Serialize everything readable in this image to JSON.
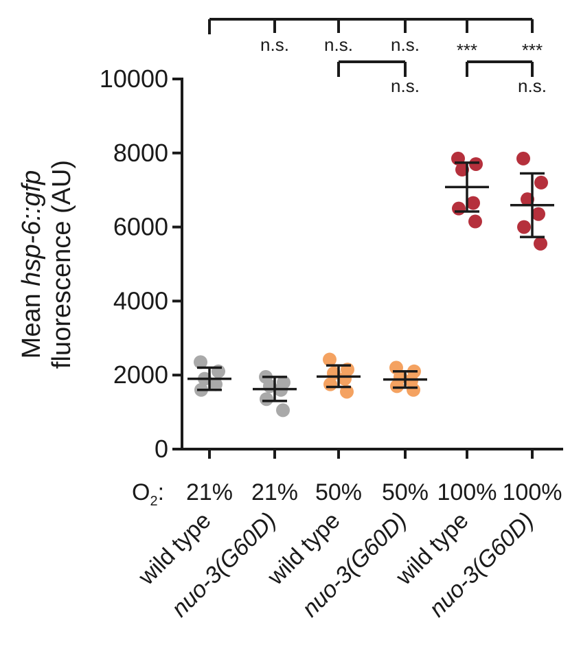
{
  "chart_data": {
    "type": "scatter",
    "ylabel_prefix": "Mean ",
    "ylabel_italic": "hsp-6::gfp",
    "ylabel_line2": "fluorescence (AU)",
    "ylim": [
      0,
      10000
    ],
    "yticks": [
      "0",
      "2000",
      "4000",
      "6000",
      "8000",
      "10000"
    ],
    "o2_label": "O",
    "o2_sub": "2",
    "o2_colon": ":",
    "groups": [
      {
        "o2": "21%",
        "genotype": "wild type",
        "italic": false,
        "color": "#a9a9a9",
        "points": [
          2350,
          2100,
          1900,
          1750,
          1600
        ],
        "mean": 1900,
        "sd_low": 1600,
        "sd_high": 2200
      },
      {
        "o2": "21%",
        "genotype": "nuo-3(G60D)",
        "italic": true,
        "color": "#a9a9a9",
        "points": [
          1950,
          1800,
          1700,
          1600,
          1350,
          1050
        ],
        "mean": 1620,
        "sd_low": 1300,
        "sd_high": 1950
      },
      {
        "o2": "50%",
        "genotype": "wild type",
        "italic": false,
        "color": "#f4a261",
        "points": [
          2420,
          2150,
          2050,
          1900,
          1750,
          1550
        ],
        "mean": 1960,
        "sd_low": 1680,
        "sd_high": 2260
      },
      {
        "o2": "50%",
        "genotype": "nuo-3(G60D)",
        "italic": true,
        "color": "#f4a261",
        "points": [
          2200,
          2100,
          1950,
          1850,
          1700,
          1600
        ],
        "mean": 1880,
        "sd_low": 1660,
        "sd_high": 2100
      },
      {
        "o2": "100%",
        "genotype": "wild type",
        "italic": false,
        "color": "#b5303c",
        "points": [
          7850,
          7700,
          7550,
          6650,
          6500,
          6150
        ],
        "mean": 7080,
        "sd_low": 6420,
        "sd_high": 7740
      },
      {
        "o2": "100%",
        "genotype": "nuo-3(G60D)",
        "italic": true,
        "color": "#b5303c",
        "points": [
          7850,
          7200,
          6750,
          6350,
          6000,
          5550
        ],
        "mean": 6590,
        "sd_low": 5730,
        "sd_high": 7450
      }
    ],
    "significance": {
      "top_bracket_from": 0,
      "top_labels": [
        {
          "group": 1,
          "text": "n.s."
        },
        {
          "group": 2,
          "text": "n.s."
        },
        {
          "group": 3,
          "text": "n.s."
        },
        {
          "group": 4,
          "text": "***"
        },
        {
          "group": 5,
          "text": "***"
        }
      ],
      "sub_brackets": [
        {
          "from": 2,
          "to": 3,
          "text": "n.s."
        },
        {
          "from": 4,
          "to": 5,
          "text": "n.s."
        }
      ]
    }
  }
}
